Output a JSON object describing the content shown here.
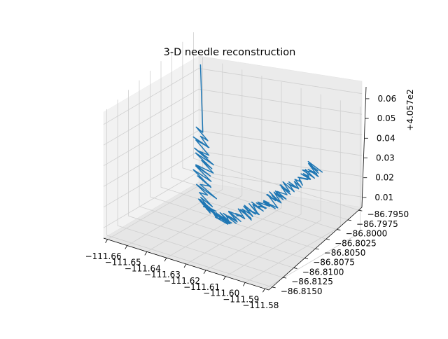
{
  "chart_data": {
    "type": "line3d",
    "title": "3-D needle reconstruction",
    "offset_label": "+4.057e2",
    "series_color": "#1f77b4",
    "x_axis": {
      "ticks": [
        "−111.66",
        "−111.65",
        "−111.64",
        "−111.63",
        "−111.62",
        "−111.61",
        "−111.60",
        "−111.59",
        "−111.58"
      ],
      "range": [
        -111.662,
        -111.578
      ]
    },
    "y_axis": {
      "ticks": [
        "−86.8150",
        "−86.8125",
        "−86.8100",
        "−86.8075",
        "−86.8050",
        "−86.8025",
        "−86.8000",
        "−86.7975",
        "−86.7950"
      ],
      "range": [
        -86.8155,
        -86.7945
      ]
    },
    "z_axis": {
      "ticks": [
        "0.01",
        "0.02",
        "0.03",
        "0.04",
        "0.05",
        "0.06"
      ],
      "range": [
        0.005,
        0.07
      ]
    },
    "series": [
      {
        "description_points": [
          {
            "x": -111.66,
            "y": -86.795,
            "z": 0.067
          },
          {
            "x": -111.645,
            "y": -86.801,
            "z": 0.045
          },
          {
            "x": -111.63,
            "y": -86.807,
            "z": 0.02
          },
          {
            "x": -111.615,
            "y": -86.809,
            "z": 0.02
          },
          {
            "x": -111.6,
            "y": -86.808,
            "z": 0.03
          },
          {
            "x": -111.59,
            "y": -86.806,
            "z": 0.04
          },
          {
            "x": -111.582,
            "y": -86.803,
            "z": 0.05
          }
        ]
      }
    ]
  }
}
